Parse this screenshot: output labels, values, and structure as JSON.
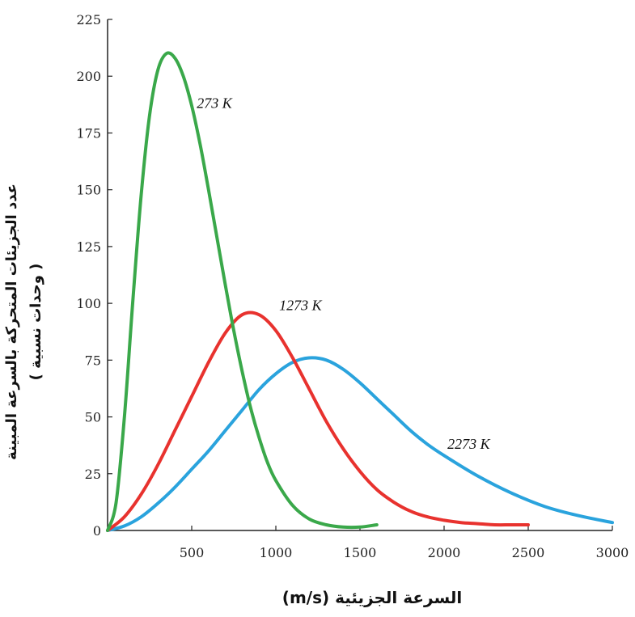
{
  "chart_data": {
    "type": "line",
    "title": "",
    "xlabel": "السرعة الجزيئية (m/s)",
    "ylabel_lines": [
      "عدد الجزيئات المتحركة بالسرعة المبينة",
      "( وحدات نسبية )"
    ],
    "xlim": [
      0,
      3000
    ],
    "ylim": [
      0,
      225
    ],
    "x_ticks": [
      500,
      1000,
      1500,
      2000,
      2500,
      3000
    ],
    "y_ticks": [
      0,
      25,
      50,
      75,
      100,
      125,
      150,
      175,
      200,
      225
    ],
    "grid": false,
    "legend": "none",
    "series": [
      {
        "name": "273 K",
        "color": "#3aa84a",
        "x": [
          0,
          50,
          100,
          150,
          200,
          250,
          300,
          350,
          400,
          450,
          500,
          550,
          600,
          650,
          700,
          750,
          800,
          850,
          900,
          950,
          1000,
          1100,
          1200,
          1300,
          1400,
          1500,
          1600
        ],
        "y": [
          0,
          12,
          50,
          101,
          148,
          183,
          203,
          210,
          208,
          200,
          187,
          170,
          150,
          129,
          108,
          88,
          70,
          54,
          41,
          30,
          22,
          11,
          5,
          2.5,
          1.5,
          1.5,
          2.5
        ]
      },
      {
        "name": "1273 K",
        "color": "#e8322e",
        "x": [
          0,
          100,
          200,
          300,
          400,
          500,
          600,
          700,
          800,
          900,
          1000,
          1100,
          1200,
          1300,
          1400,
          1500,
          1600,
          1700,
          1800,
          1900,
          2000,
          2100,
          2200,
          2300,
          2400,
          2500
        ],
        "y": [
          0,
          6,
          16,
          29,
          44,
          59,
          74,
          87,
          95,
          95,
          88,
          76,
          62,
          48,
          36,
          26,
          18,
          12.5,
          8.5,
          6,
          4.5,
          3.5,
          3,
          2.5,
          2.5,
          2.5
        ]
      },
      {
        "name": "2273 K",
        "color": "#2aa3dd",
        "x": [
          0,
          100,
          200,
          300,
          400,
          500,
          600,
          700,
          800,
          900,
          1000,
          1100,
          1200,
          1300,
          1400,
          1500,
          1600,
          1700,
          1800,
          1900,
          2000,
          2200,
          2400,
          2600,
          2800,
          3000
        ],
        "y": [
          0,
          2,
          6,
          12,
          19,
          27,
          35,
          44,
          53,
          62,
          69,
          74,
          76,
          75,
          71,
          65,
          58,
          51,
          44,
          38,
          33,
          24,
          16.5,
          10.5,
          6.5,
          3.5
        ]
      }
    ],
    "annotations": [
      {
        "text": "273 K",
        "x": 530,
        "y": 186
      },
      {
        "text": "1273 K",
        "x": 1020,
        "y": 97
      },
      {
        "text": "2273 K",
        "x": 2020,
        "y": 36
      }
    ]
  }
}
